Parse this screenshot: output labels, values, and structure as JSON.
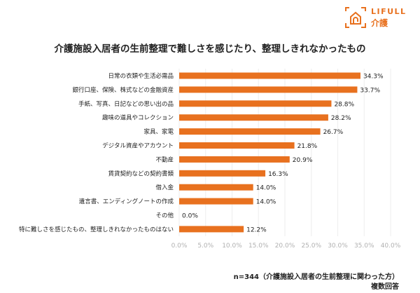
{
  "logo": {
    "text": "LIFULL",
    "subtext": "介護",
    "color": "#e8711f"
  },
  "chart_data": {
    "type": "bar",
    "orientation": "horizontal",
    "title": "介護施設入居者の生前整理で難しさを感じたり、整理しきれなかったもの",
    "categories": [
      "日常の衣類や生活必需品",
      "銀行口座、保険、株式などの金融資産",
      "手紙、写真、日記などの思い出の品",
      "趣味の道具やコレクション",
      "家具、家電",
      "デジタル資産やアカウント",
      "不動産",
      "賃貸契約などの契約書類",
      "借入金",
      "遺言書、エンディングノートの作成",
      "その他",
      "特に難しさを感じたもの、整理しきれなかったものはない"
    ],
    "values": [
      34.3,
      33.7,
      28.8,
      28.2,
      26.7,
      21.8,
      20.9,
      16.3,
      14.0,
      14.0,
      0.0,
      12.2
    ],
    "data_labels": [
      "34.3%",
      "33.7%",
      "28.8%",
      "28.2%",
      "26.7%",
      "21.8%",
      "20.9%",
      "16.3%",
      "14.0%",
      "14.0%",
      "0.0%",
      "12.2%"
    ],
    "xlim": [
      0,
      40
    ],
    "xticks": [
      "0.0%",
      "5.0%",
      "10.0%",
      "15.0%",
      "20.0%",
      "25.0%",
      "30.0%",
      "35.0%",
      "40.0%"
    ],
    "grid": true,
    "bar_color": "#e8711f",
    "xlabel": "",
    "ylabel": ""
  },
  "notes": {
    "sample": "n=344（介護施設入居者の生前整理に関わった方）",
    "multiple": "複数回答"
  }
}
